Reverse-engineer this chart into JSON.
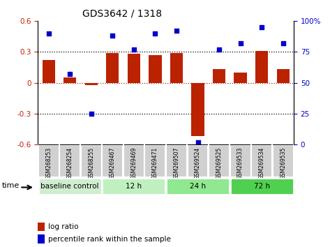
{
  "title": "GDS3642 / 1318",
  "samples": [
    "GSM268253",
    "GSM268254",
    "GSM268255",
    "GSM269467",
    "GSM269469",
    "GSM269471",
    "GSM269507",
    "GSM269524",
    "GSM269525",
    "GSM269533",
    "GSM269534",
    "GSM269535"
  ],
  "log_ratio": [
    0.22,
    0.05,
    -0.02,
    0.29,
    0.28,
    0.27,
    0.29,
    -0.52,
    0.13,
    0.1,
    0.31,
    0.13
  ],
  "percentile_rank": [
    90,
    57,
    25,
    88,
    77,
    90,
    92,
    2,
    77,
    82,
    95,
    82
  ],
  "group_data": [
    {
      "label": "baseline control",
      "start": 0,
      "end": 3,
      "color": "#d0edd0"
    },
    {
      "label": "12 h",
      "start": 3,
      "end": 6,
      "color": "#c0f0c0"
    },
    {
      "label": "24 h",
      "start": 6,
      "end": 9,
      "color": "#90e890"
    },
    {
      "label": "72 h",
      "start": 9,
      "end": 12,
      "color": "#50d050"
    }
  ],
  "ylim_left": [
    -0.6,
    0.6
  ],
  "ylim_right": [
    0,
    100
  ],
  "bar_color": "#bb2200",
  "scatter_color": "#0000cc",
  "background_color": "#ffffff",
  "plot_bg_color": "#ffffff",
  "tick_box_color": "#d0d0d0",
  "yticks_left": [
    -0.6,
    -0.3,
    0.0,
    0.3,
    0.6
  ],
  "ytick_labels_left": [
    "-0.6",
    "-0.3",
    "0",
    "0.3",
    "0.6"
  ],
  "yticks_right": [
    0,
    25,
    50,
    75,
    100
  ],
  "ytick_labels_right": [
    "0",
    "25",
    "50",
    "75",
    "100%"
  ],
  "legend_items": [
    {
      "label": "log ratio",
      "color": "#bb2200"
    },
    {
      "label": "percentile rank within the sample",
      "color": "#0000cc"
    }
  ]
}
